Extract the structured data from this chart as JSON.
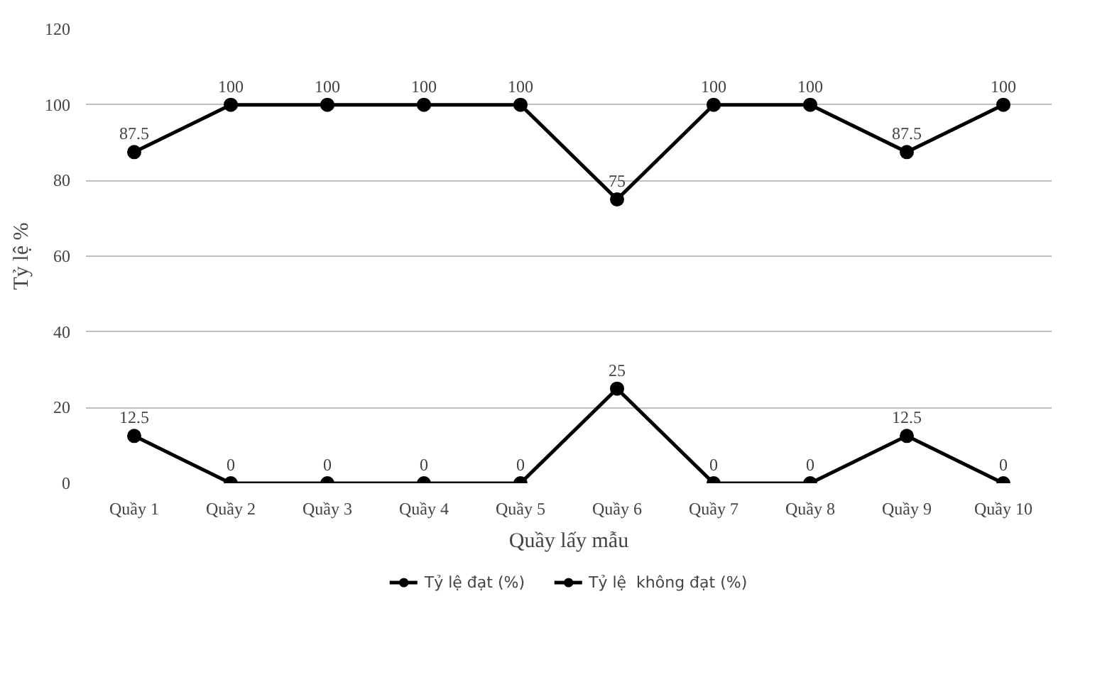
{
  "chart_data": {
    "type": "line",
    "xlabel": "Quầy lấy mẫu",
    "ylabel": "Tỷ lệ %",
    "categories": [
      "Quầy 1",
      "Quầy 2",
      "Quầy 3",
      "Quầy 4",
      "Quầy 5",
      "Quầy 6",
      "Quầy 7",
      "Quầy 8",
      "Quầy 9",
      "Quầy 10"
    ],
    "series": [
      {
        "name": "Tỷ lệ đạt (%)",
        "color": "#000000",
        "values": [
          87.5,
          100,
          100,
          100,
          100,
          75,
          100,
          100,
          87.5,
          100
        ]
      },
      {
        "name": "Tỷ lệ  không đạt (%)",
        "color": "#000000",
        "values": [
          12.5,
          0,
          0,
          0,
          0,
          25,
          0,
          0,
          12.5,
          0
        ]
      }
    ],
    "ylim": [
      0,
      120
    ],
    "yticks": [
      0,
      20,
      40,
      60,
      80,
      100,
      120
    ],
    "grid": "y",
    "legend": "bottom",
    "marker": "circle",
    "line_style": "solid",
    "data_labels": true
  }
}
